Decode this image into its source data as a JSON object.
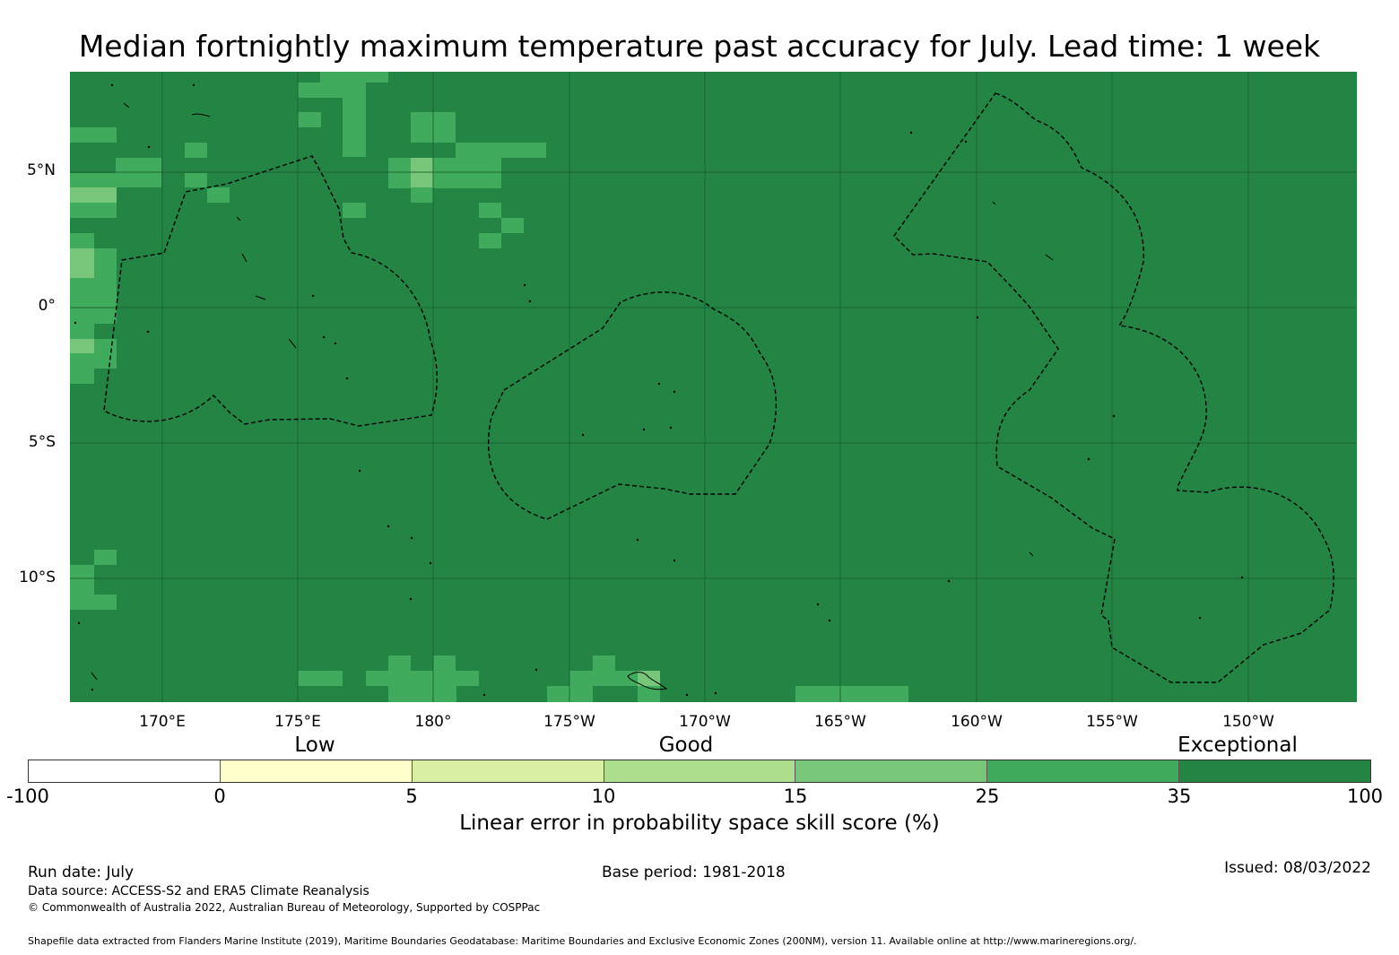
{
  "title": "Median fortnightly maximum temperature past accuracy for July. Lead time: 1 week",
  "map": {
    "lat_labels": [
      "5°N",
      "0°",
      "5°S",
      "10°S"
    ],
    "lon_labels": [
      "170°E",
      "175°E",
      "180°",
      "175°W",
      "170°W",
      "165°W",
      "160°W",
      "155°W",
      "150°W"
    ],
    "background_color": "#238443",
    "gridline_color": "#1a6030",
    "boundary_style": "dashed black",
    "land_outline_color": "#000000"
  },
  "legend": {
    "categories": [
      "Low",
      "Good",
      "Exceptional"
    ],
    "ticks": [
      "-100",
      "0",
      "5",
      "10",
      "15",
      "25",
      "35",
      "100"
    ],
    "colors": [
      "#ffffff",
      "#ffffcc",
      "#d9f0a3",
      "#addd8e",
      "#78c679",
      "#41ab5d",
      "#238443"
    ],
    "label": "Linear error in probability space skill score (%)"
  },
  "footer": {
    "run_date": "Run date: July",
    "base_period": "Base period: 1981-2018",
    "issued": "Issued: 08/03/2022",
    "data_source": "Data source: ACCESS-S2 and ERA5 Climate Reanalysis",
    "copyright": "© Commonwealth of Australia 2022, Australian Bureau of Meteorology, Supported by COSPPac",
    "shapefile": "Shapefile data extracted from Flanders Marine Institute (2019), Maritime Boundaries Geodatabase: Maritime Boundaries and Exclusive Economic Zones (200NM), version 11. Available online at http://www.marineregions.org/."
  }
}
